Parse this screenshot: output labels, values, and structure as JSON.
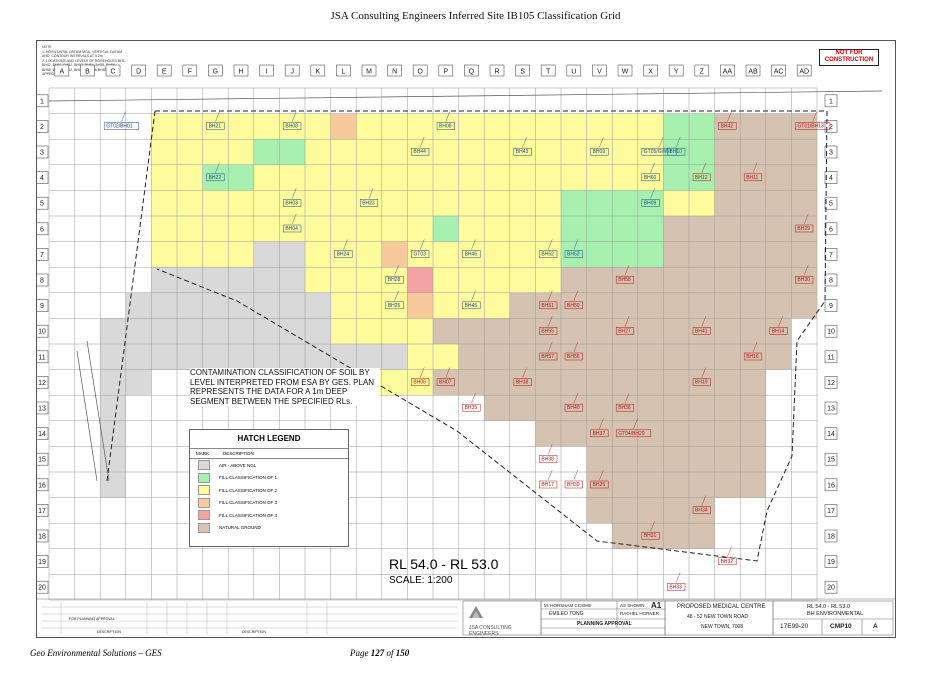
{
  "document": {
    "title": "JSA Consulting Engineers Inferred Site IB105 Classification Grid",
    "footer_left": "Geo Environmental Solutions – GES",
    "footer_page_prefix": "Page",
    "footer_page": "127",
    "footer_page_of": "of",
    "footer_total": "150"
  },
  "sheet": {
    "not_for_construction": "NOT FOR CONSTRUCTION",
    "columns": [
      "A",
      "B",
      "C",
      "D",
      "E",
      "F",
      "G",
      "H",
      "I",
      "J",
      "K",
      "L",
      "M",
      "N",
      "O",
      "P",
      "Q",
      "R",
      "S",
      "T",
      "U",
      "V",
      "W",
      "X",
      "Y",
      "Z",
      "AA",
      "AB",
      "AC",
      "AD"
    ],
    "rows": [
      "1",
      "2",
      "3",
      "4",
      "5",
      "6",
      "7",
      "8",
      "9",
      "10",
      "11",
      "12",
      "13",
      "14",
      "15",
      "16",
      "17",
      "18",
      "19",
      "20"
    ],
    "note_lines": [
      "NOTE",
      "1. HORIZONTAL DATUM MGA, VERTICAL DATUM",
      "AHD, CONTOUR INTERVALS AT 0.2m",
      "2. LOCATIONS AND LEVELS OF BOREHOLES BH1-",
      "BH42, BH51, BH52, BH53, BH54, BH55, BH56",
      "BH58, BH61, BH62, BH63, BH64 & BH65 ARE",
      "APPROXIMATE"
    ],
    "contamination_note": "CONTAMINATION CLASSIFICATION OF SOIL BY LEVEL INTERPRETED FROM ESA BY GES. PLAN REPRESENTS THE DATA FOR A 1m DEEP SEGMENT BETWEEN THE SPECIFIED RLs.",
    "rl_range": "RL 54.0 - RL 53.0",
    "scale": "SCALE: 1:200"
  },
  "legend": {
    "title": "HATCH LEGEND",
    "col_mark": "MARK",
    "col_desc": "DESCRIPTION",
    "items": [
      {
        "label": "AIR - ABOVE NGL",
        "color": "#d9d9d9"
      },
      {
        "label": "FILL CLASSIFICATION OF 1",
        "color": "#a8f0b0"
      },
      {
        "label": "FILL CLASSIFICATION OF 2",
        "color": "#fdfb9c"
      },
      {
        "label": "FILL CLASSIFICATION OF 3",
        "color": "#f8c99c"
      },
      {
        "label": "FILL CLASSIFICATION OF 4",
        "color": "#f4a3a3"
      },
      {
        "label": "NATURAL GROUND",
        "color": "#d6c2b0"
      }
    ]
  },
  "title_block": {
    "company": "JSA CONSULTING ENGINEERS",
    "drawn": "M. HORSHAM CCSMIII",
    "scale_label": "AS SHOWN",
    "size": "A1",
    "designer": "EMILEO TONG",
    "checker": "RACHEL HORNER",
    "status": "PLANNING APPROVAL",
    "project_line1": "PROPOSED MEDICAL CENTRE",
    "project_line2": "48 - 52 NEW TOWN ROAD",
    "project_line3": "NEW TOWN, 7008",
    "drawing_title1": "RL 54.0 - RL 53.0",
    "drawing_title2": "BH ENVIRONMENTAL",
    "project_no": "17E99-20",
    "drawing_no": "CMP10",
    "revision": "A",
    "rev_col_desc": "DESCRIPTION",
    "rev_row1": "FOR PLANNING APPROVAL"
  },
  "boreholes": [
    {
      "label": "GT02/BH01",
      "c": 3,
      "r": 2,
      "z": 1
    },
    {
      "label": "BH21",
      "c": 7,
      "r": 2,
      "z": 2
    },
    {
      "label": "BH08",
      "c": 10,
      "r": 2,
      "z": 3
    },
    {
      "label": "BH08",
      "c": 16,
      "r": 2,
      "z": 1
    },
    {
      "label": "BH44",
      "c": 15,
      "r": 3,
      "z": 2
    },
    {
      "label": "BH43",
      "c": 19,
      "r": 3,
      "z": 2
    },
    {
      "label": "BH09",
      "c": 22,
      "r": 3,
      "z": 2
    },
    {
      "label": "GT05/GW01",
      "c": 24,
      "r": 3,
      "z": 1
    },
    {
      "label": "BH10",
      "c": 25,
      "r": 3,
      "z": 1
    },
    {
      "label": "BH42",
      "c": 27,
      "r": 2,
      "z": 5
    },
    {
      "label": "GT01/BH13",
      "c": 30,
      "r": 2,
      "z": 5
    },
    {
      "label": "BH60",
      "c": 24,
      "r": 4,
      "z": 1
    },
    {
      "label": "BH12",
      "c": 26,
      "r": 4,
      "z": 5
    },
    {
      "label": "BH11",
      "c": 28,
      "r": 4,
      "z": 5
    },
    {
      "label": "BH22",
      "c": 7,
      "r": 4,
      "z": 1
    },
    {
      "label": "BH03",
      "c": 10,
      "r": 5,
      "z": 2
    },
    {
      "label": "BH23",
      "c": 13,
      "r": 5,
      "z": 2
    },
    {
      "label": "BH09",
      "c": 24,
      "r": 5,
      "z": 2
    },
    {
      "label": "BH29",
      "c": 30,
      "r": 6,
      "z": 5
    },
    {
      "label": "BH04",
      "c": 10,
      "r": 6,
      "z": 2
    },
    {
      "label": "BH46",
      "c": 17,
      "r": 7,
      "z": 2
    },
    {
      "label": "BH52",
      "c": 20,
      "r": 7,
      "z": 1
    },
    {
      "label": "BH53",
      "c": 21,
      "r": 7,
      "z": 1
    },
    {
      "label": "GT03",
      "c": 15,
      "r": 7,
      "z": 1
    },
    {
      "label": "BH24",
      "c": 12,
      "r": 7,
      "z": 2
    },
    {
      "label": "BH28",
      "c": 14,
      "r": 8,
      "z": 4
    },
    {
      "label": "BH58",
      "c": 23,
      "r": 8,
      "z": 5
    },
    {
      "label": "BH30",
      "c": 30,
      "r": 8,
      "z": 5
    },
    {
      "label": "BH25",
      "c": 14,
      "r": 9,
      "z": 4
    },
    {
      "label": "BH45",
      "c": 17,
      "r": 9,
      "z": 2
    },
    {
      "label": "BH51",
      "c": 20,
      "r": 9,
      "z": 5
    },
    {
      "label": "BH50",
      "c": 21,
      "r": 9,
      "z": 5
    },
    {
      "label": "BH55",
      "c": 20,
      "r": 10,
      "z": 5
    },
    {
      "label": "BH27",
      "c": 23,
      "r": 10,
      "z": 5
    },
    {
      "label": "BH41",
      "c": 26,
      "r": 10,
      "z": 5
    },
    {
      "label": "BH14",
      "c": 29,
      "r": 10,
      "z": 5
    },
    {
      "label": "BH57",
      "c": 20,
      "r": 11,
      "z": 5
    },
    {
      "label": "BH56",
      "c": 21,
      "r": 11,
      "z": 5
    },
    {
      "label": "BH16",
      "c": 28,
      "r": 11,
      "z": 5
    },
    {
      "label": "BH06",
      "c": 15,
      "r": 12,
      "z": 5
    },
    {
      "label": "BH07",
      "c": 16,
      "r": 12,
      "z": 5
    },
    {
      "label": "BH18",
      "c": 19,
      "r": 12,
      "z": 5
    },
    {
      "label": "BH19",
      "c": 26,
      "r": 12,
      "z": 5
    },
    {
      "label": "BH35",
      "c": 17,
      "r": 13,
      "z": 5
    },
    {
      "label": "BH40",
      "c": 21,
      "r": 13,
      "z": 5
    },
    {
      "label": "BH36",
      "c": 23,
      "r": 13,
      "z": 5
    },
    {
      "label": "BH37",
      "c": 22,
      "r": 14,
      "z": 5
    },
    {
      "label": "GT04/BH20",
      "c": 23,
      "r": 14,
      "z": 5
    },
    {
      "label": "BH38",
      "c": 20,
      "r": 15,
      "z": 5
    },
    {
      "label": "BH39",
      "c": 21,
      "r": 16,
      "z": 5
    },
    {
      "label": "BH17",
      "c": 20,
      "r": 16,
      "z": 5
    },
    {
      "label": "BH26",
      "c": 22,
      "r": 16,
      "z": 5
    },
    {
      "label": "BH34",
      "c": 26,
      "r": 17,
      "z": 5
    },
    {
      "label": "BH31",
      "c": 24,
      "r": 18,
      "z": 5
    },
    {
      "label": "BH32",
      "c": 27,
      "r": 19,
      "z": 5
    },
    {
      "label": "BH33",
      "c": 25,
      "r": 20,
      "z": 5
    }
  ]
}
